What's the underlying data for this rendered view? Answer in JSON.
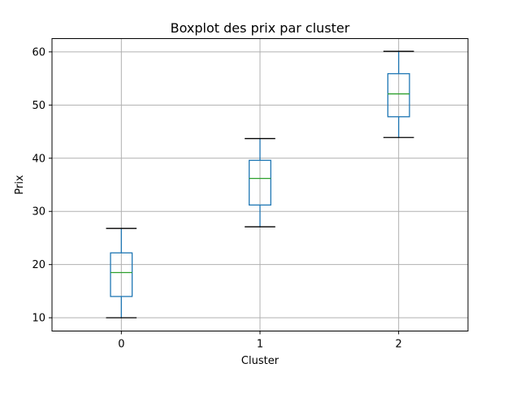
{
  "chart_data": {
    "type": "box",
    "title": "Boxplot des prix par cluster",
    "xlabel": "Cluster",
    "ylabel": "Prix",
    "categories": [
      "0",
      "1",
      "2"
    ],
    "ylim": [
      7.5,
      62.5
    ],
    "yticks": [
      10,
      20,
      30,
      40,
      50,
      60
    ],
    "grid": true,
    "boxes": [
      {
        "category": "0",
        "whisker_low": 10.0,
        "q1": 14.0,
        "median": 18.5,
        "q3": 22.2,
        "whisker_high": 26.8
      },
      {
        "category": "1",
        "whisker_low": 27.1,
        "q1": 31.2,
        "median": 36.2,
        "q3": 39.6,
        "whisker_high": 43.7
      },
      {
        "category": "2",
        "whisker_low": 43.9,
        "q1": 47.8,
        "median": 52.1,
        "q3": 55.9,
        "whisker_high": 60.1
      }
    ],
    "colors": {
      "box": "#1f77b4",
      "median": "#2ca02c",
      "caps": "#000000",
      "grid": "#b0b0b0",
      "axes": "#000000"
    }
  }
}
